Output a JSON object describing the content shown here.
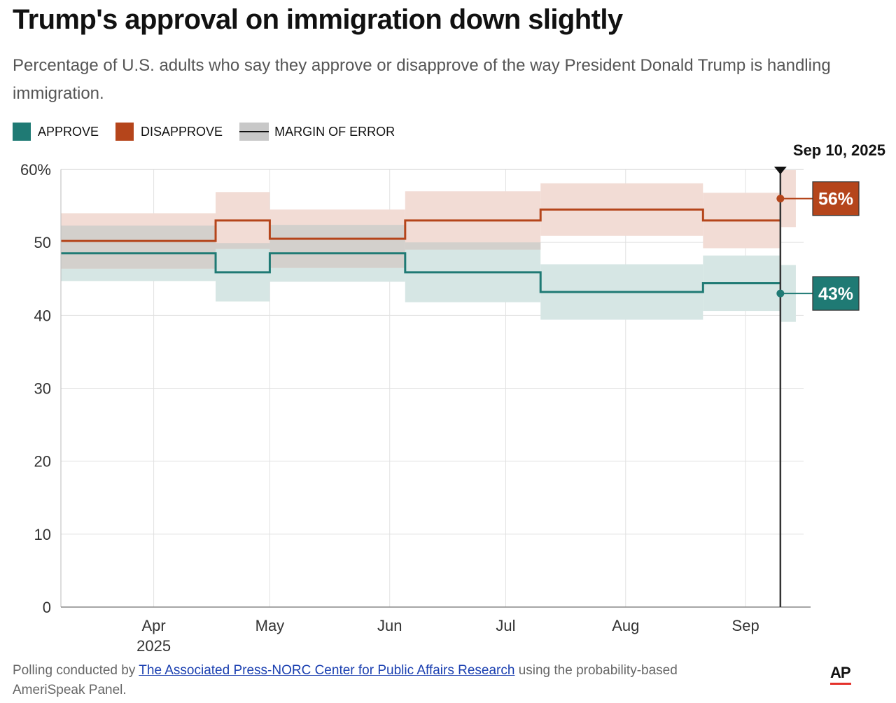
{
  "title": "Trump's approval on immigration down slightly",
  "subtitle": "Percentage of U.S. adults who say they approve or disapprove of the way President Donald Trump is handling immigration.",
  "legend": {
    "approve": "APPROVE",
    "disapprove": "DISAPPROVE",
    "moe": "MARGIN OF ERROR"
  },
  "colors": {
    "approve": "#1f7a74",
    "disapprove": "#b5451b",
    "approve_band": "#d6e6e4",
    "disapprove_band": "#f2dcd5",
    "overlap_band": "#d3d0cc",
    "grid": "#e1e1e1",
    "axis": "#222222"
  },
  "footer": {
    "prefix": "Polling conducted by ",
    "link_text": "The Associated Press-NORC Center for Public Affairs Research",
    "suffix": " using the probability-based AmeriSpeak Panel."
  },
  "logo_text": "AP",
  "chart_data": {
    "type": "line",
    "step": true,
    "x_domain": [
      "2025-03-08",
      "2025-09-16"
    ],
    "ylim": [
      0,
      60
    ],
    "y_ticks": [
      0,
      10,
      20,
      30,
      40,
      50,
      60
    ],
    "y_tick_labels": [
      "0",
      "10",
      "20",
      "30",
      "40",
      "50",
      "60%"
    ],
    "x_ticks": [
      {
        "date": "2025-04-01",
        "label": "Apr",
        "sublabel": "2025"
      },
      {
        "date": "2025-05-01",
        "label": "May",
        "sublabel": ""
      },
      {
        "date": "2025-06-01",
        "label": "Jun",
        "sublabel": ""
      },
      {
        "date": "2025-07-01",
        "label": "Jul",
        "sublabel": ""
      },
      {
        "date": "2025-08-01",
        "label": "Aug",
        "sublabel": ""
      },
      {
        "date": "2025-09-01",
        "label": "Sep",
        "sublabel": ""
      }
    ],
    "grid": true,
    "legend_position": "top-left",
    "series": [
      {
        "key": "approve",
        "name": "APPROVE",
        "steps": [
          {
            "start": "2025-03-08",
            "end": "2025-04-17",
            "value": 48.5,
            "low": 44.7,
            "high": 52.3
          },
          {
            "start": "2025-04-17",
            "end": "2025-05-01",
            "value": 45.9,
            "low": 41.9,
            "high": 49.9
          },
          {
            "start": "2025-05-01",
            "end": "2025-06-05",
            "value": 48.5,
            "low": 44.6,
            "high": 52.4
          },
          {
            "start": "2025-06-05",
            "end": "2025-07-10",
            "value": 45.9,
            "low": 41.8,
            "high": 50.0
          },
          {
            "start": "2025-07-10",
            "end": "2025-08-21",
            "value": 43.2,
            "low": 39.4,
            "high": 47.0
          },
          {
            "start": "2025-08-21",
            "end": "2025-09-10",
            "value": 44.4,
            "low": 40.6,
            "high": 48.2
          },
          {
            "start": "2025-09-10",
            "end": "2025-09-14",
            "value": 43.0,
            "low": 39.1,
            "high": 46.9
          }
        ]
      },
      {
        "key": "disapprove",
        "name": "DISAPPROVE",
        "steps": [
          {
            "start": "2025-03-08",
            "end": "2025-04-17",
            "value": 50.2,
            "low": 46.4,
            "high": 54.0
          },
          {
            "start": "2025-04-17",
            "end": "2025-05-01",
            "value": 53.0,
            "low": 49.1,
            "high": 56.9
          },
          {
            "start": "2025-05-01",
            "end": "2025-06-05",
            "value": 50.5,
            "low": 46.5,
            "high": 54.5
          },
          {
            "start": "2025-06-05",
            "end": "2025-07-10",
            "value": 53.0,
            "low": 49.0,
            "high": 57.0
          },
          {
            "start": "2025-07-10",
            "end": "2025-08-21",
            "value": 54.5,
            "low": 50.9,
            "high": 58.1
          },
          {
            "start": "2025-08-21",
            "end": "2025-09-10",
            "value": 53.0,
            "low": 49.2,
            "high": 56.8
          },
          {
            "start": "2025-09-10",
            "end": "2025-09-14",
            "value": 56.0,
            "low": 52.1,
            "high": 59.9
          }
        ]
      }
    ],
    "current": {
      "date": "2025-09-10",
      "date_label": "Sep 10, 2025",
      "approve_value": 43,
      "approve_label": "43%",
      "disapprove_value": 56,
      "disapprove_label": "56%"
    }
  }
}
